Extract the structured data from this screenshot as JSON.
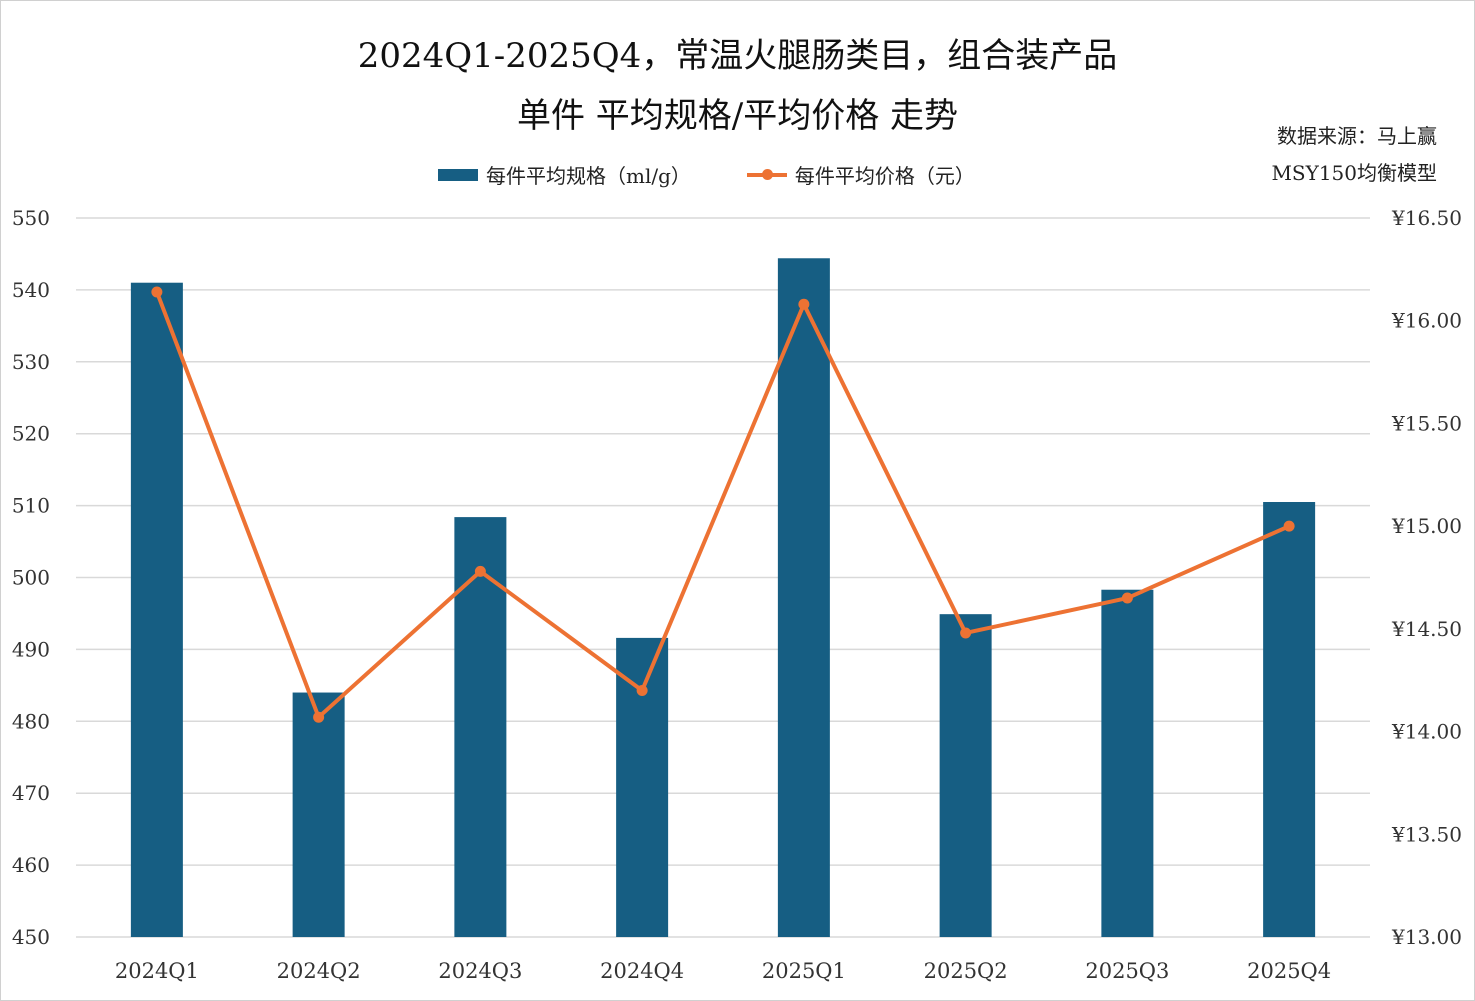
{
  "chart_data": {
    "type": "bar+line",
    "title_line1": "2024Q1-2025Q4，常温火腿肠类目，组合装产品",
    "title_line2": "单件 平均规格/平均价格 走势",
    "source_line1": "数据来源：马上赢",
    "source_line2": "MSY150均衡模型",
    "categories": [
      "2024Q1",
      "2024Q2",
      "2024Q3",
      "2024Q4",
      "2025Q1",
      "2025Q2",
      "2025Q3",
      "2025Q4"
    ],
    "series": [
      {
        "name": "每件平均规格（ml/g）",
        "type": "bar",
        "axis": "left",
        "color": "#165e83",
        "values": [
          541.0,
          484.0,
          508.4,
          491.6,
          544.4,
          494.9,
          498.3,
          510.5
        ]
      },
      {
        "name": "每件平均价格（元）",
        "type": "line",
        "axis": "right",
        "color": "#ed7233",
        "values": [
          16.14,
          14.07,
          14.78,
          14.2,
          16.08,
          14.48,
          14.65,
          15.0
        ]
      }
    ],
    "left_axis": {
      "ylim": [
        450,
        550
      ],
      "ticks": [
        "450",
        "460",
        "470",
        "480",
        "490",
        "500",
        "510",
        "520",
        "530",
        "540",
        "550"
      ]
    },
    "right_axis": {
      "ylim": [
        13.0,
        16.5
      ],
      "ticks": [
        "¥13.00",
        "¥13.50",
        "¥14.00",
        "¥14.50",
        "¥15.00",
        "¥15.50",
        "¥16.00",
        "¥16.50"
      ]
    },
    "grid": true,
    "legend_position": "top"
  }
}
